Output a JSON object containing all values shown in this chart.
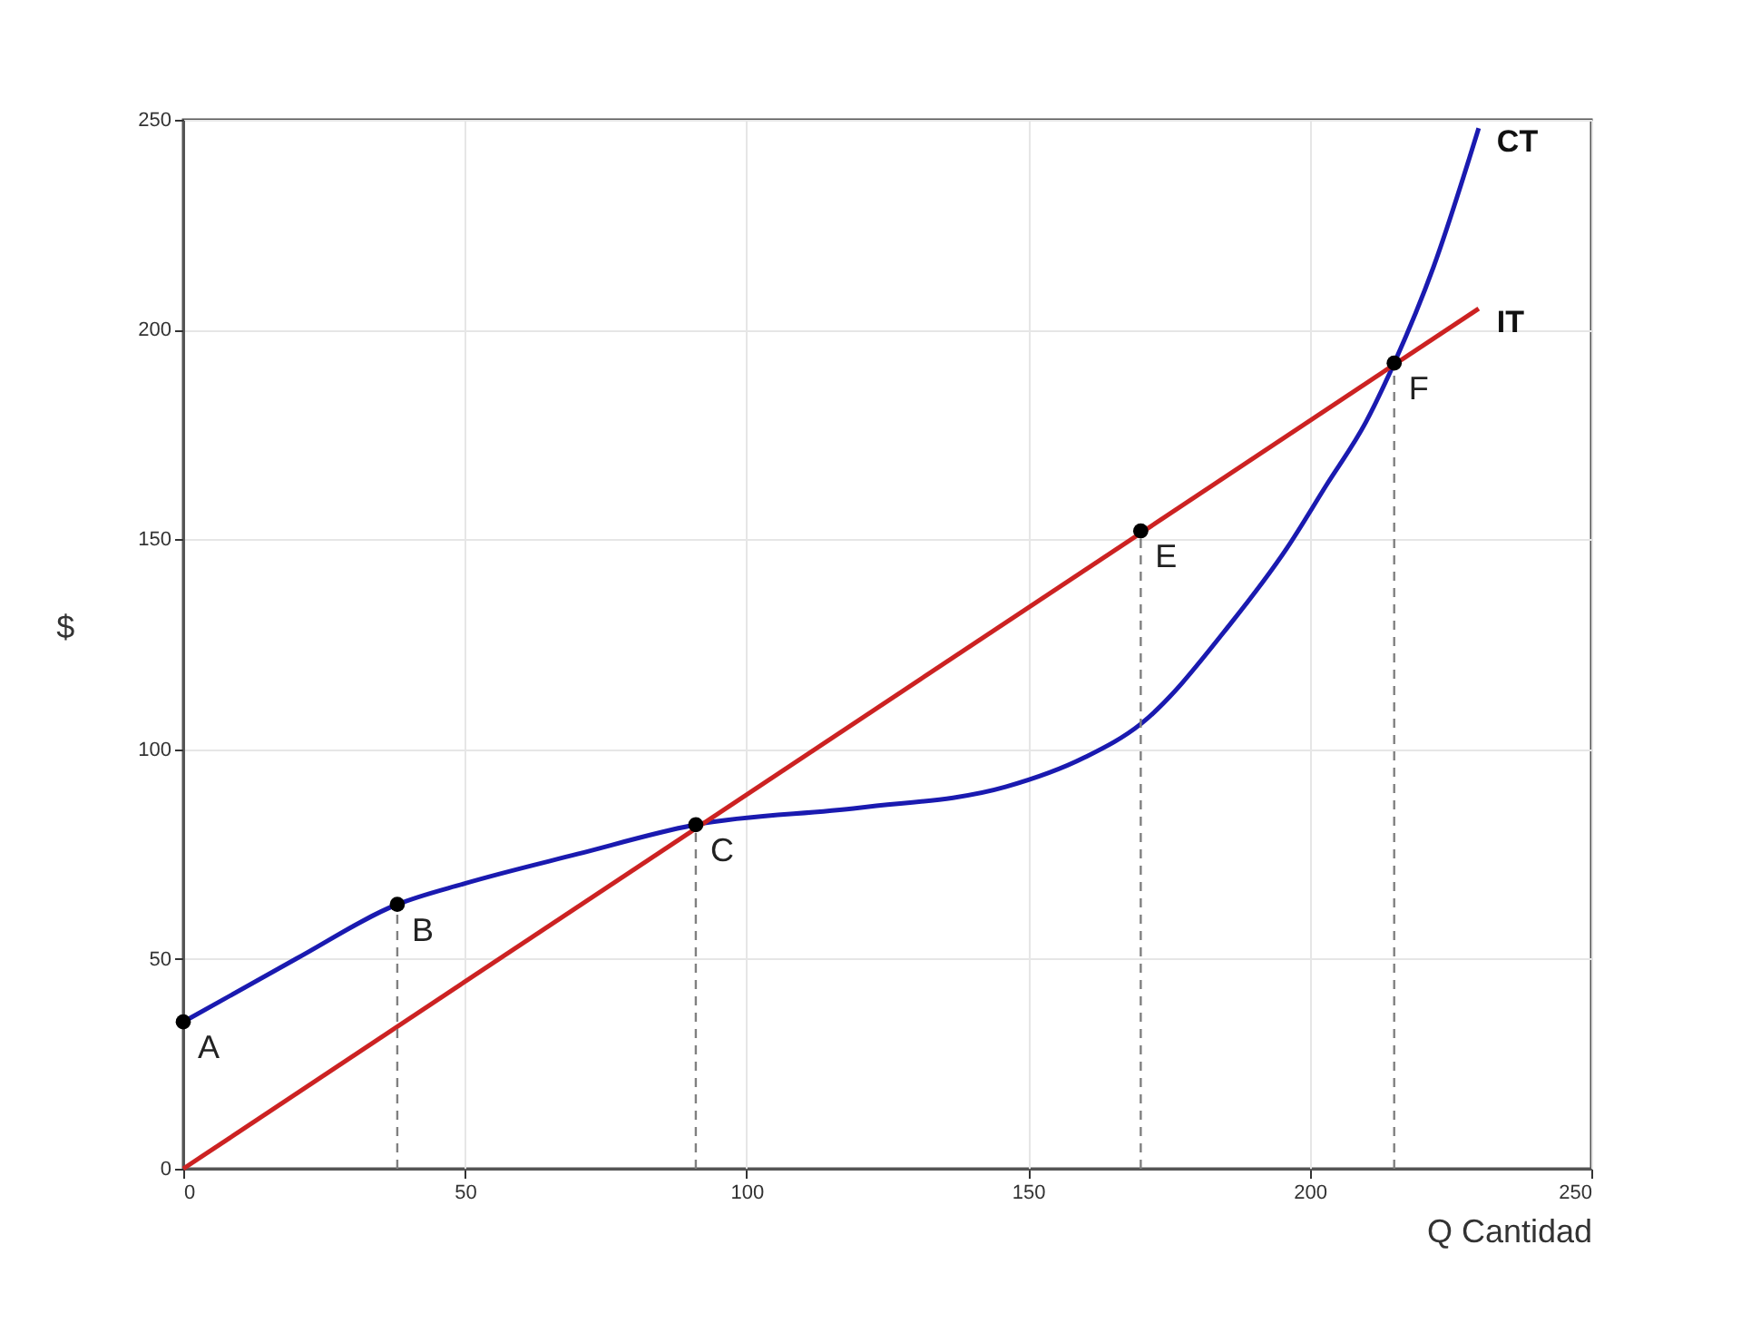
{
  "chart_data": {
    "type": "line",
    "xlabel": "Q Cantidad",
    "ylabel": "$",
    "xlim": [
      0,
      250
    ],
    "xticks": [
      0,
      50,
      100,
      150,
      200,
      250
    ],
    "ylim": [
      0,
      250
    ],
    "yticks": [
      0,
      50,
      100,
      150,
      200,
      250
    ],
    "grid": true,
    "series": [
      {
        "name": "CT",
        "color": "#1a1ab0",
        "x": [
          0,
          20,
          38,
          50,
          70,
          91,
          120,
          146,
          160,
          170,
          186,
          196,
          203,
          210,
          215,
          222,
          230
        ],
        "values": [
          35,
          50,
          63,
          68,
          75,
          82,
          86,
          91,
          98,
          106,
          130,
          148,
          163,
          178,
          192,
          215,
          248
        ]
      },
      {
        "name": "IT",
        "color": "#cc2222",
        "x": [
          0,
          230
        ],
        "values": [
          0,
          205
        ]
      },
      {
        "type": "line",
        "line_style": "dashed",
        "color": "#808080",
        "x": [
          38,
          38
        ],
        "values": [
          0,
          63
        ]
      },
      {
        "type": "line",
        "line_style": "dashed",
        "color": "#808080",
        "x": [
          91,
          91
        ],
        "values": [
          0,
          82
        ]
      },
      {
        "type": "line",
        "line_style": "dashed",
        "color": "#808080",
        "x": [
          170,
          170
        ],
        "values": [
          0,
          152
        ]
      },
      {
        "type": "line",
        "line_style": "dashed",
        "color": "#808080",
        "x": [
          215,
          215
        ],
        "values": [
          0,
          192
        ]
      },
      {
        "type": "scatter",
        "marker": "circle",
        "color": "#000000",
        "x": [
          0,
          38,
          91,
          170,
          215
        ],
        "values": [
          35,
          63,
          82,
          152,
          192
        ]
      }
    ],
    "annotations": [
      {
        "text": "A",
        "x": 0,
        "y": 35
      },
      {
        "text": "B",
        "x": 38,
        "y": 63
      },
      {
        "text": "C",
        "x": 91,
        "y": 82
      },
      {
        "text": "E",
        "x": 170,
        "y": 152
      },
      {
        "text": "F",
        "x": 215,
        "y": 192
      }
    ]
  }
}
